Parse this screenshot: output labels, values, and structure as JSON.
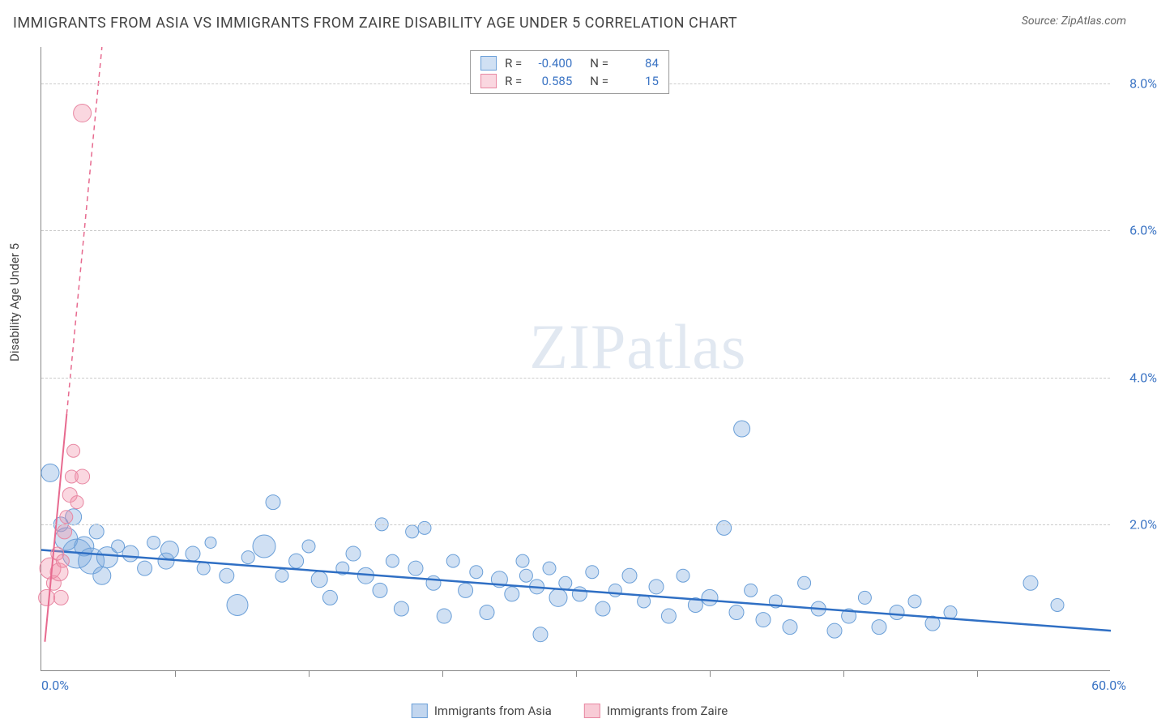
{
  "title": "IMMIGRANTS FROM ASIA VS IMMIGRANTS FROM ZAIRE DISABILITY AGE UNDER 5 CORRELATION CHART",
  "source": "Source: ZipAtlas.com",
  "y_axis_label": "Disability Age Under 5",
  "watermark_a": "ZIP",
  "watermark_b": "atlas",
  "chart": {
    "type": "scatter",
    "xlim": [
      0,
      60
    ],
    "ylim": [
      0,
      8.5
    ],
    "x_tick_positions": [
      7.5,
      15,
      22.5,
      30,
      37.5,
      45,
      52.5
    ],
    "x_tick_labels": {
      "min": "0.0%",
      "max": "60.0%"
    },
    "y_ticks": [
      2.0,
      4.0,
      6.0,
      8.0
    ],
    "y_tick_labels": [
      "2.0%",
      "4.0%",
      "6.0%",
      "8.0%"
    ],
    "grid_color": "#cccccc",
    "background_color": "#ffffff",
    "series": [
      {
        "name": "Immigrants from Asia",
        "fill": "rgba(120,165,220,0.35)",
        "stroke": "#6a9fd8",
        "R": "-0.400",
        "N": "84",
        "trend": {
          "x1": 0,
          "y1": 1.65,
          "x2": 60,
          "y2": 0.55,
          "color": "#2f6fc4",
          "dash": "none",
          "width": 2.5
        },
        "points": [
          {
            "x": 0.5,
            "y": 2.7,
            "r": 11
          },
          {
            "x": 1.1,
            "y": 2.0,
            "r": 9
          },
          {
            "x": 1.4,
            "y": 1.8,
            "r": 14
          },
          {
            "x": 1.8,
            "y": 2.1,
            "r": 10
          },
          {
            "x": 2.0,
            "y": 1.6,
            "r": 18
          },
          {
            "x": 2.4,
            "y": 1.7,
            "r": 12
          },
          {
            "x": 2.8,
            "y": 1.5,
            "r": 16
          },
          {
            "x": 3.1,
            "y": 1.9,
            "r": 9
          },
          {
            "x": 3.4,
            "y": 1.3,
            "r": 11
          },
          {
            "x": 3.7,
            "y": 1.55,
            "r": 13
          },
          {
            "x": 4.3,
            "y": 1.7,
            "r": 8
          },
          {
            "x": 5.0,
            "y": 1.6,
            "r": 10
          },
          {
            "x": 5.8,
            "y": 1.4,
            "r": 9
          },
          {
            "x": 6.3,
            "y": 1.75,
            "r": 8
          },
          {
            "x": 7.0,
            "y": 1.5,
            "r": 10
          },
          {
            "x": 7.2,
            "y": 1.65,
            "r": 11
          },
          {
            "x": 8.5,
            "y": 1.6,
            "r": 9
          },
          {
            "x": 9.1,
            "y": 1.4,
            "r": 8
          },
          {
            "x": 9.5,
            "y": 1.75,
            "r": 7
          },
          {
            "x": 10.4,
            "y": 1.3,
            "r": 9
          },
          {
            "x": 11.0,
            "y": 0.9,
            "r": 13
          },
          {
            "x": 11.6,
            "y": 1.55,
            "r": 8
          },
          {
            "x": 12.5,
            "y": 1.7,
            "r": 14
          },
          {
            "x": 13.0,
            "y": 2.3,
            "r": 9
          },
          {
            "x": 13.5,
            "y": 1.3,
            "r": 8
          },
          {
            "x": 14.3,
            "y": 1.5,
            "r": 9
          },
          {
            "x": 15.0,
            "y": 1.7,
            "r": 8
          },
          {
            "x": 15.6,
            "y": 1.25,
            "r": 10
          },
          {
            "x": 16.2,
            "y": 1.0,
            "r": 9
          },
          {
            "x": 16.9,
            "y": 1.4,
            "r": 8
          },
          {
            "x": 17.5,
            "y": 1.6,
            "r": 9
          },
          {
            "x": 18.2,
            "y": 1.3,
            "r": 10
          },
          {
            "x": 19.0,
            "y": 1.1,
            "r": 9
          },
          {
            "x": 19.1,
            "y": 2.0,
            "r": 8
          },
          {
            "x": 19.7,
            "y": 1.5,
            "r": 8
          },
          {
            "x": 20.2,
            "y": 0.85,
            "r": 9
          },
          {
            "x": 20.8,
            "y": 1.9,
            "r": 8
          },
          {
            "x": 21.0,
            "y": 1.4,
            "r": 9
          },
          {
            "x": 21.5,
            "y": 1.95,
            "r": 8
          },
          {
            "x": 22.0,
            "y": 1.2,
            "r": 9
          },
          {
            "x": 22.6,
            "y": 0.75,
            "r": 9
          },
          {
            "x": 23.1,
            "y": 1.5,
            "r": 8
          },
          {
            "x": 23.8,
            "y": 1.1,
            "r": 9
          },
          {
            "x": 24.4,
            "y": 1.35,
            "r": 8
          },
          {
            "x": 25.0,
            "y": 0.8,
            "r": 9
          },
          {
            "x": 25.7,
            "y": 1.25,
            "r": 10
          },
          {
            "x": 26.4,
            "y": 1.05,
            "r": 9
          },
          {
            "x": 27.0,
            "y": 1.5,
            "r": 8
          },
          {
            "x": 27.2,
            "y": 1.3,
            "r": 8
          },
          {
            "x": 27.8,
            "y": 1.15,
            "r": 9
          },
          {
            "x": 28.0,
            "y": 0.5,
            "r": 9
          },
          {
            "x": 28.5,
            "y": 1.4,
            "r": 8
          },
          {
            "x": 29.0,
            "y": 1.0,
            "r": 11
          },
          {
            "x": 29.4,
            "y": 1.2,
            "r": 8
          },
          {
            "x": 30.2,
            "y": 1.05,
            "r": 9
          },
          {
            "x": 30.9,
            "y": 1.35,
            "r": 8
          },
          {
            "x": 31.5,
            "y": 0.85,
            "r": 9
          },
          {
            "x": 32.2,
            "y": 1.1,
            "r": 8
          },
          {
            "x": 33.0,
            "y": 1.3,
            "r": 9
          },
          {
            "x": 33.8,
            "y": 0.95,
            "r": 8
          },
          {
            "x": 34.5,
            "y": 1.15,
            "r": 9
          },
          {
            "x": 35.2,
            "y": 0.75,
            "r": 9
          },
          {
            "x": 36.0,
            "y": 1.3,
            "r": 8
          },
          {
            "x": 36.7,
            "y": 0.9,
            "r": 9
          },
          {
            "x": 37.5,
            "y": 1.0,
            "r": 10
          },
          {
            "x": 38.3,
            "y": 1.95,
            "r": 9
          },
          {
            "x": 39.0,
            "y": 0.8,
            "r": 9
          },
          {
            "x": 39.3,
            "y": 3.3,
            "r": 10
          },
          {
            "x": 39.8,
            "y": 1.1,
            "r": 8
          },
          {
            "x": 40.5,
            "y": 0.7,
            "r": 9
          },
          {
            "x": 41.2,
            "y": 0.95,
            "r": 8
          },
          {
            "x": 42.0,
            "y": 0.6,
            "r": 9
          },
          {
            "x": 42.8,
            "y": 1.2,
            "r": 8
          },
          {
            "x": 43.6,
            "y": 0.85,
            "r": 9
          },
          {
            "x": 44.5,
            "y": 0.55,
            "r": 9
          },
          {
            "x": 45.3,
            "y": 0.75,
            "r": 9
          },
          {
            "x": 46.2,
            "y": 1.0,
            "r": 8
          },
          {
            "x": 47.0,
            "y": 0.6,
            "r": 9
          },
          {
            "x": 48.0,
            "y": 0.8,
            "r": 9
          },
          {
            "x": 49.0,
            "y": 0.95,
            "r": 8
          },
          {
            "x": 50.0,
            "y": 0.65,
            "r": 9
          },
          {
            "x": 51.0,
            "y": 0.8,
            "r": 8
          },
          {
            "x": 55.5,
            "y": 1.2,
            "r": 9
          },
          {
            "x": 57.0,
            "y": 0.9,
            "r": 8
          }
        ]
      },
      {
        "name": "Immigrants from Zaire",
        "fill": "rgba(240,140,165,0.35)",
        "stroke": "#e887a2",
        "R": "0.585",
        "N": "15",
        "trend": {
          "x1": 0.2,
          "y1": 0.4,
          "x2": 3.4,
          "y2": 8.5,
          "color": "#e76a8f",
          "dash": "6,5",
          "width": 2,
          "solid_until_y": 3.5
        },
        "points": [
          {
            "x": 0.3,
            "y": 1.0,
            "r": 10
          },
          {
            "x": 0.5,
            "y": 1.4,
            "r": 13
          },
          {
            "x": 0.7,
            "y": 1.2,
            "r": 9
          },
          {
            "x": 0.9,
            "y": 1.6,
            "r": 8
          },
          {
            "x": 1.0,
            "y": 1.35,
            "r": 11
          },
          {
            "x": 1.1,
            "y": 1.0,
            "r": 9
          },
          {
            "x": 1.2,
            "y": 1.5,
            "r": 8
          },
          {
            "x": 1.3,
            "y": 1.9,
            "r": 9
          },
          {
            "x": 1.4,
            "y": 2.1,
            "r": 8
          },
          {
            "x": 1.6,
            "y": 2.4,
            "r": 9
          },
          {
            "x": 1.7,
            "y": 2.65,
            "r": 8
          },
          {
            "x": 1.8,
            "y": 3.0,
            "r": 8
          },
          {
            "x": 2.0,
            "y": 2.3,
            "r": 8
          },
          {
            "x": 2.3,
            "y": 2.65,
            "r": 9
          },
          {
            "x": 2.3,
            "y": 7.6,
            "r": 11
          }
        ]
      }
    ],
    "legend_swatches": [
      {
        "label": "Immigrants from Asia",
        "fill": "rgba(120,165,220,0.45)",
        "border": "#6a9fd8"
      },
      {
        "label": "Immigrants from Zaire",
        "fill": "rgba(240,140,165,0.45)",
        "border": "#e887a2"
      }
    ]
  }
}
